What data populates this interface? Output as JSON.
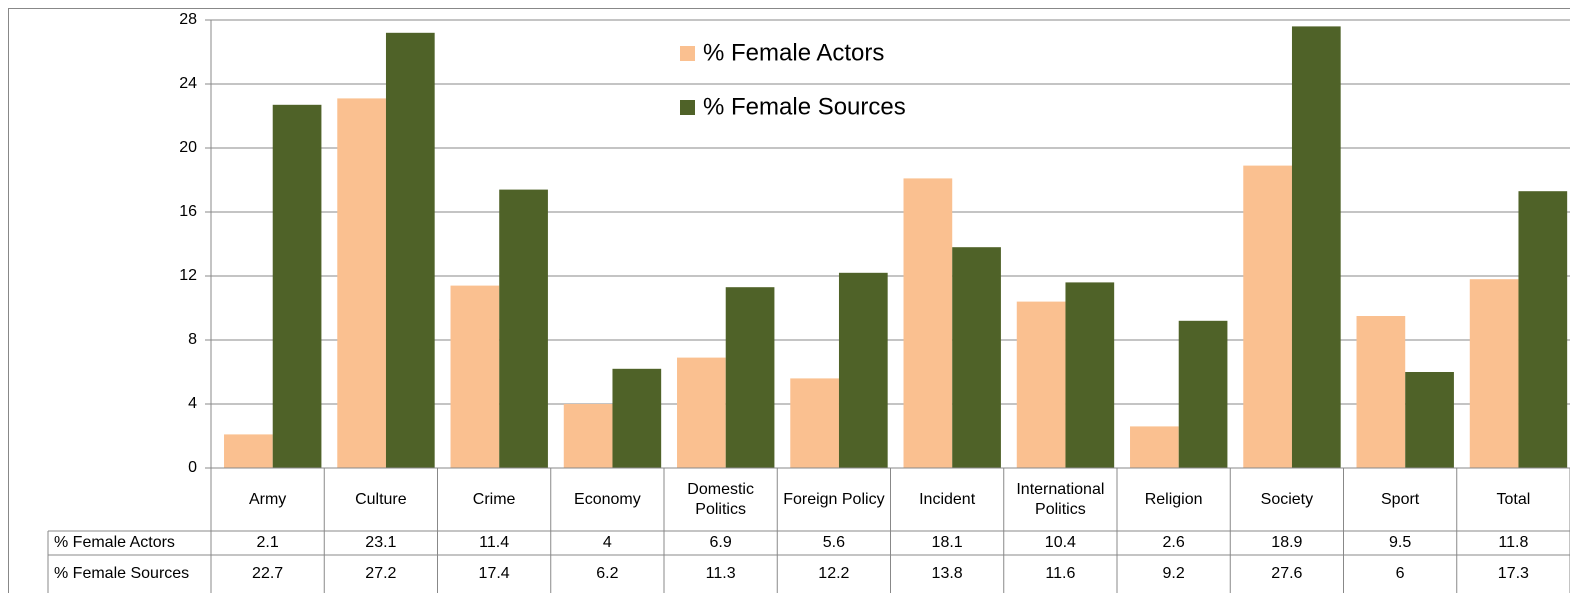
{
  "chart_data": {
    "type": "bar",
    "categories": [
      "Army",
      "Culture",
      "Crime",
      "Economy",
      "Domestic Politics",
      "Foreign Policy",
      "Incident",
      "International Politics",
      "Religion",
      "Society",
      "Sport",
      "Total"
    ],
    "series": [
      {
        "name": "% Female Actors",
        "color": "#fac090",
        "values": [
          2.1,
          23.1,
          11.4,
          4,
          6.9,
          5.6,
          18.1,
          10.4,
          2.6,
          18.9,
          9.5,
          11.8
        ]
      },
      {
        "name": "% Female Sources",
        "color": "#4f6228",
        "values": [
          22.7,
          27.2,
          17.4,
          6.2,
          11.3,
          12.2,
          13.8,
          11.6,
          9.2,
          27.6,
          6,
          17.3
        ]
      }
    ],
    "ylim": [
      0,
      28
    ],
    "yticks": [
      0,
      4,
      8,
      12,
      16,
      20,
      24,
      28
    ],
    "grid": true,
    "legend": "top"
  }
}
